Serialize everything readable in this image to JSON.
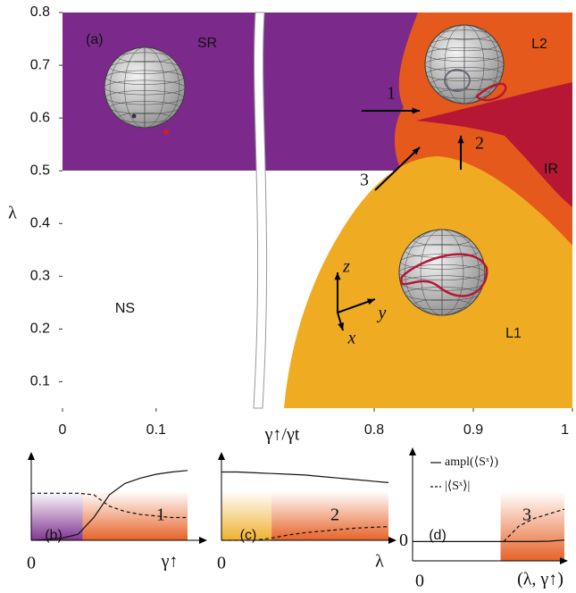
{
  "chart_data": [
    {
      "type": "phase",
      "panel": "(a)",
      "xlabel": "γ↑/γt",
      "ylabel": "λ",
      "xlim": [
        0,
        1
      ],
      "xbreak": [
        0.208,
        0.682
      ],
      "ylim": [
        0.05,
        0.8
      ],
      "xticks": [
        0,
        0.1,
        0.8,
        0.9,
        1
      ],
      "yticks": [
        0.1,
        0.2,
        0.3,
        0.4,
        0.5,
        0.6,
        0.7,
        0.8
      ],
      "regions": [
        {
          "label": "SR",
          "color": "#7b2a8c"
        },
        {
          "label": "L2",
          "color": "#e55a1c"
        },
        {
          "label": "IR",
          "color": "#b51735"
        },
        {
          "label": "L1",
          "color": "#efac23"
        },
        {
          "label": "NS",
          "color": "#ffffff"
        }
      ],
      "annotations": [
        "1",
        "2",
        "3"
      ],
      "axes3d": [
        "z",
        "y",
        "x"
      ]
    },
    {
      "type": "line",
      "panel": "(b)",
      "tag": "1",
      "xlabel": "γ↑",
      "xlim": [
        0,
        1
      ],
      "ylim": [
        0,
        1
      ],
      "xticks": [
        0
      ],
      "bands": [
        {
          "color": "#7b2a8c",
          "from": 0,
          "to": 0.33
        },
        {
          "color": "#e55a1c",
          "from": 0.33,
          "to": 1
        }
      ],
      "x": [
        0,
        0.1,
        0.2,
        0.3,
        0.4,
        0.5,
        0.6,
        0.7,
        0.8,
        0.9,
        1
      ],
      "series": [
        {
          "color": "#111111",
          "dash": false,
          "values": [
            0,
            0.01,
            0.03,
            0.08,
            0.3,
            0.6,
            0.75,
            0.82,
            0.87,
            0.9,
            0.92
          ]
        },
        {
          "color": "#111111",
          "dash": true,
          "values": [
            0.62,
            0.62,
            0.62,
            0.62,
            0.6,
            0.45,
            0.38,
            0.34,
            0.32,
            0.3,
            0.3
          ]
        }
      ]
    },
    {
      "type": "line",
      "panel": "(c)",
      "tag": "2",
      "xlabel": "λ",
      "xlim": [
        0,
        1
      ],
      "ylim": [
        0,
        1
      ],
      "xticks": [
        0
      ],
      "bands": [
        {
          "color": "#efac23",
          "from": 0,
          "to": 0.3
        },
        {
          "color": "#e55a1c",
          "from": 0.3,
          "to": 1
        }
      ],
      "x": [
        0,
        0.1,
        0.2,
        0.3,
        0.4,
        0.5,
        0.6,
        0.7,
        0.8,
        0.9,
        1
      ],
      "series": [
        {
          "color": "#111111",
          "dash": false,
          "values": [
            0.9,
            0.9,
            0.89,
            0.88,
            0.87,
            0.86,
            0.84,
            0.82,
            0.8,
            0.78,
            0.76
          ]
        },
        {
          "color": "#111111",
          "dash": true,
          "values": [
            0,
            0,
            0,
            0.03,
            0.07,
            0.1,
            0.12,
            0.14,
            0.16,
            0.17,
            0.18
          ]
        }
      ]
    },
    {
      "type": "line",
      "panel": "(d)",
      "tag": "3",
      "xlabel": "(λ, γ↑)",
      "xlim": [
        0,
        1
      ],
      "ylim": [
        -0.25,
        1
      ],
      "xticks": [
        0
      ],
      "yticks": [
        0
      ],
      "bands": [
        {
          "color": "#e55a1c",
          "from": 0.58,
          "to": 1
        }
      ],
      "x": [
        0,
        0.1,
        0.2,
        0.3,
        0.4,
        0.5,
        0.6,
        0.7,
        0.8,
        0.9,
        1
      ],
      "series": [
        {
          "name": "ampl(⟨Sˣ⟩)",
          "color": "#111111",
          "dash": false,
          "values": [
            0,
            0,
            0,
            0,
            0,
            0,
            0,
            0,
            0,
            0.005,
            0.02
          ]
        },
        {
          "name": "|⟨Sˣ⟩|",
          "color": "#111111",
          "dash": true,
          "values": [
            null,
            null,
            null,
            null,
            null,
            null,
            0,
            0.2,
            0.3,
            0.36,
            0.42
          ]
        }
      ]
    }
  ]
}
